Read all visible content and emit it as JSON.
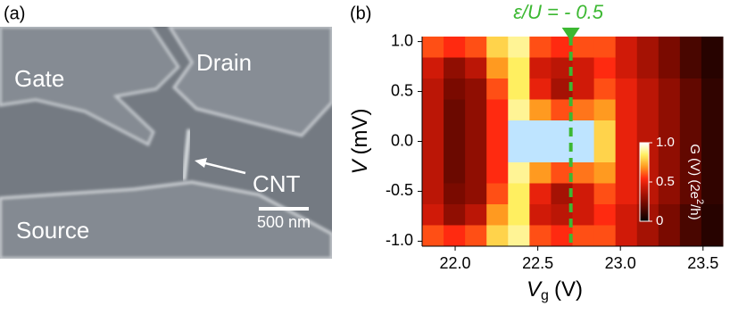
{
  "panel_a": {
    "label": "(a)",
    "gate": "Gate",
    "drain": "Drain",
    "cnt": "CNT",
    "source": "Source",
    "scale_bar": "500 nm"
  },
  "chart_data": {
    "type": "heatmap",
    "panel_label": "(b)",
    "xlabel": {
      "symbol": "V",
      "subscript": "g",
      "unit": "(V)"
    },
    "ylabel": {
      "symbol": "V",
      "unit": "(mV)"
    },
    "xlim": [
      21.8,
      23.62
    ],
    "ylim": [
      -1.05,
      1.05
    ],
    "xticks": [
      {
        "value": 22,
        "label": "22.0"
      },
      22.5,
      {
        "value": 23,
        "label": "23.0"
      },
      23.5
    ],
    "yticks": [
      {
        "value": 1,
        "label": "1.0"
      },
      0.5,
      {
        "value": 0,
        "label": "0.0"
      },
      -0.5,
      {
        "value": -1,
        "label": "-1.0"
      }
    ],
    "x": [
      21.865,
      21.995,
      22.125,
      22.255,
      22.385,
      22.515,
      22.645,
      22.775,
      22.905,
      23.035,
      23.165,
      23.295,
      23.425,
      23.555
    ],
    "y": [
      0.945,
      0.735,
      0.525,
      0.315,
      0.105,
      -0.105,
      -0.315,
      -0.525,
      -0.735,
      -0.945
    ],
    "z": [
      [
        0.6,
        0.55,
        0.6,
        0.8,
        0.9,
        0.6,
        0.55,
        0.6,
        0.6,
        0.45,
        0.35,
        0.25,
        0.15,
        0.08
      ],
      [
        0.45,
        0.3,
        0.4,
        0.7,
        0.85,
        0.45,
        0.4,
        0.45,
        0.55,
        0.45,
        0.35,
        0.25,
        0.15,
        0.08
      ],
      [
        0.4,
        0.25,
        0.3,
        0.6,
        0.85,
        0.5,
        0.35,
        0.45,
        0.6,
        0.5,
        0.4,
        0.3,
        0.2,
        0.1
      ],
      [
        0.4,
        0.22,
        0.3,
        0.55,
        0.9,
        0.7,
        0.6,
        0.65,
        0.7,
        0.5,
        0.4,
        0.3,
        0.2,
        0.1
      ],
      [
        0.4,
        0.22,
        0.3,
        0.55,
        1.05,
        1.1,
        1.1,
        1.05,
        0.8,
        0.5,
        0.4,
        0.3,
        0.2,
        0.1
      ],
      [
        0.4,
        0.22,
        0.3,
        0.55,
        1.05,
        1.1,
        1.1,
        1.05,
        0.8,
        0.5,
        0.4,
        0.3,
        0.2,
        0.1
      ],
      [
        0.4,
        0.22,
        0.3,
        0.55,
        0.9,
        0.7,
        0.6,
        0.65,
        0.7,
        0.5,
        0.4,
        0.3,
        0.2,
        0.1
      ],
      [
        0.4,
        0.25,
        0.3,
        0.6,
        0.85,
        0.5,
        0.35,
        0.45,
        0.6,
        0.5,
        0.4,
        0.3,
        0.2,
        0.1
      ],
      [
        0.45,
        0.3,
        0.4,
        0.7,
        0.85,
        0.45,
        0.4,
        0.45,
        0.55,
        0.45,
        0.35,
        0.25,
        0.15,
        0.08
      ],
      [
        0.6,
        0.55,
        0.6,
        0.8,
        0.9,
        0.6,
        0.55,
        0.6,
        0.6,
        0.45,
        0.35,
        0.25,
        0.15,
        0.08
      ]
    ],
    "annotation": {
      "text": "ε/U = - 0.5",
      "x": 22.7,
      "color": "#3cb832"
    },
    "colorbar": {
      "clim": [
        0,
        1
      ],
      "ticks": [
        {
          "value": 1,
          "label": "1.0"
        },
        0.5,
        0
      ],
      "label": {
        "pre": "G (V)  (2e",
        "sup": "2",
        "post": "/h)"
      }
    }
  }
}
